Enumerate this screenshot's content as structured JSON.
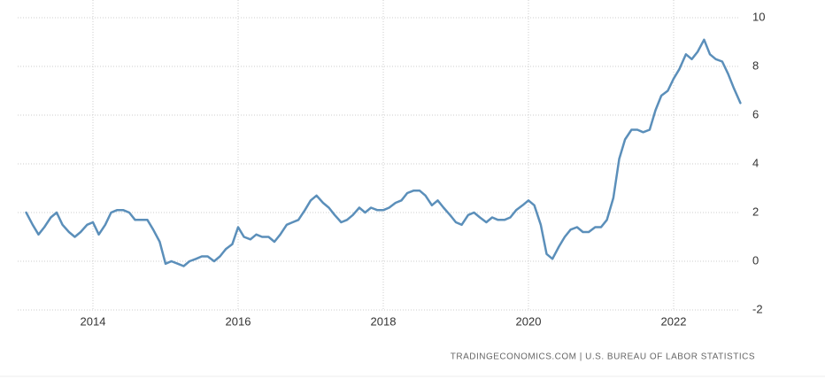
{
  "chart_data": {
    "type": "line",
    "source": "TRADINGECONOMICS.COM  |  U.S. BUREAU OF LABOR STATISTICS",
    "x": [
      2013.08,
      2013.17,
      2013.25,
      2013.33,
      2013.42,
      2013.5,
      2013.58,
      2013.67,
      2013.75,
      2013.83,
      2013.92,
      2014,
      2014.08,
      2014.17,
      2014.25,
      2014.33,
      2014.42,
      2014.5,
      2014.58,
      2014.67,
      2014.75,
      2014.83,
      2014.92,
      2015,
      2015.08,
      2015.17,
      2015.25,
      2015.33,
      2015.42,
      2015.5,
      2015.58,
      2015.67,
      2015.75,
      2015.83,
      2015.92,
      2016,
      2016.08,
      2016.17,
      2016.25,
      2016.33,
      2016.42,
      2016.5,
      2016.58,
      2016.67,
      2016.75,
      2016.83,
      2016.92,
      2017,
      2017.08,
      2017.17,
      2017.25,
      2017.33,
      2017.42,
      2017.5,
      2017.58,
      2017.67,
      2017.75,
      2017.83,
      2017.92,
      2018,
      2018.08,
      2018.17,
      2018.25,
      2018.33,
      2018.42,
      2018.5,
      2018.58,
      2018.67,
      2018.75,
      2018.83,
      2018.92,
      2019,
      2019.08,
      2019.17,
      2019.25,
      2019.33,
      2019.42,
      2019.5,
      2019.58,
      2019.67,
      2019.75,
      2019.83,
      2019.92,
      2020,
      2020.08,
      2020.17,
      2020.25,
      2020.33,
      2020.42,
      2020.5,
      2020.58,
      2020.67,
      2020.75,
      2020.83,
      2020.92,
      2021,
      2021.08,
      2021.17,
      2021.25,
      2021.33,
      2021.42,
      2021.5,
      2021.58,
      2021.67,
      2021.75,
      2021.83,
      2021.92,
      2022,
      2022.08,
      2022.17,
      2022.25,
      2022.33,
      2022.42,
      2022.5,
      2022.58,
      2022.67,
      2022.75,
      2022.83,
      2022.92
    ],
    "values": [
      2.0,
      1.5,
      1.1,
      1.4,
      1.8,
      2.0,
      1.5,
      1.2,
      1.0,
      1.2,
      1.5,
      1.6,
      1.1,
      1.5,
      2.0,
      2.1,
      2.1,
      2.0,
      1.7,
      1.7,
      1.7,
      1.3,
      0.8,
      -0.1,
      0.0,
      -0.1,
      -0.2,
      0.0,
      0.1,
      0.2,
      0.2,
      0.0,
      0.2,
      0.5,
      0.7,
      1.4,
      1.0,
      0.9,
      1.1,
      1.0,
      1.0,
      0.8,
      1.1,
      1.5,
      1.6,
      1.7,
      2.1,
      2.5,
      2.7,
      2.4,
      2.2,
      1.9,
      1.6,
      1.7,
      1.9,
      2.2,
      2.0,
      2.2,
      2.1,
      2.1,
      2.2,
      2.4,
      2.5,
      2.8,
      2.9,
      2.9,
      2.7,
      2.3,
      2.5,
      2.2,
      1.9,
      1.6,
      1.5,
      1.9,
      2.0,
      1.8,
      1.6,
      1.8,
      1.7,
      1.7,
      1.8,
      2.1,
      2.3,
      2.5,
      2.3,
      1.5,
      0.3,
      0.1,
      0.6,
      1.0,
      1.3,
      1.4,
      1.2,
      1.2,
      1.4,
      1.4,
      1.7,
      2.6,
      4.2,
      5.0,
      5.4,
      5.4,
      5.3,
      5.4,
      6.2,
      6.8,
      7.0,
      7.5,
      7.9,
      8.5,
      8.3,
      8.6,
      9.1,
      8.5,
      8.3,
      8.2,
      7.7,
      7.1,
      6.5
    ],
    "color": "#5b8fba",
    "xlim": [
      2013,
      2023
    ],
    "xticks": [
      2014,
      2016,
      2018,
      2020,
      2022
    ],
    "ylim": [
      -2,
      10
    ],
    "yticks": [
      -2,
      0,
      2,
      4,
      6,
      8,
      10
    ],
    "grid": true
  }
}
